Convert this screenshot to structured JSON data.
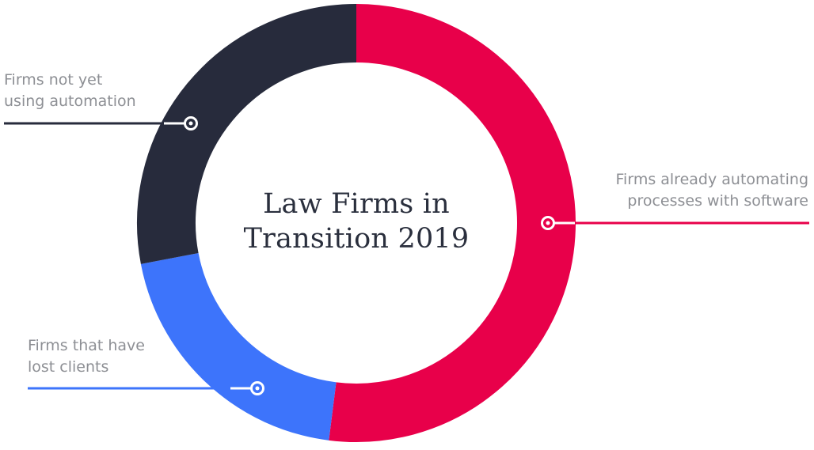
{
  "chart_data": {
    "type": "pie",
    "donut": true,
    "title_lines": [
      "Law Firms in",
      "Transition 2019"
    ],
    "segments": [
      {
        "label_lines": [
          "Firms already automating",
          "processes with software"
        ],
        "value": 52,
        "color": "#e8004a"
      },
      {
        "label_lines": [
          "Firms that have",
          "lost clients"
        ],
        "value": 20,
        "color": "#3d74fb"
      },
      {
        "label_lines": [
          "Firms not yet",
          "using automation"
        ],
        "value": 28,
        "color": "#272b3c"
      }
    ]
  }
}
